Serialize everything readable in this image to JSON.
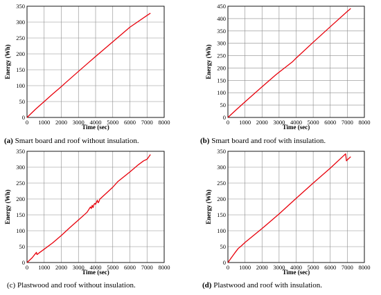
{
  "chart_data": [
    {
      "type": "line",
      "caption_prefix": "(a)",
      "caption_text": " Smart board and roof without insulation.",
      "xlabel": "Time (sec)",
      "ylabel": "Energy (Wh)",
      "xlim": [
        0,
        8000
      ],
      "ylim": [
        0,
        350
      ],
      "xticks": [
        0,
        1000,
        2000,
        3000,
        4000,
        5000,
        6000,
        7000,
        8000
      ],
      "yticks": [
        0,
        50,
        100,
        150,
        200,
        250,
        300,
        350
      ],
      "grid": true,
      "line_color": "#e8000b",
      "series": [
        {
          "x": [
            0,
            250,
            500,
            1000,
            1500,
            2000,
            2200,
            3000,
            4000,
            5000,
            6000,
            7000,
            7200
          ],
          "y": [
            0,
            13,
            26,
            50,
            74,
            97,
            107,
            145,
            192,
            238,
            284,
            321,
            328
          ]
        }
      ]
    },
    {
      "type": "line",
      "caption_prefix": "(b)",
      "caption_text": " Smart board and roof with insulation.",
      "xlabel": "Time (sec)",
      "ylabel": "Energy (Wh)",
      "xlim": [
        0,
        8000
      ],
      "ylim": [
        0,
        450
      ],
      "xticks": [
        0,
        1000,
        2000,
        3000,
        4000,
        5000,
        6000,
        7000,
        8000
      ],
      "yticks": [
        0,
        50,
        100,
        150,
        200,
        250,
        300,
        350,
        400,
        450
      ],
      "grid": true,
      "line_color": "#e8000b",
      "series": [
        {
          "x": [
            0,
            500,
            1000,
            2000,
            2800,
            3000,
            3800,
            4000,
            5000,
            6000,
            7000,
            7200
          ],
          "y": [
            0,
            32,
            63,
            124,
            172,
            183,
            226,
            240,
            304,
            367,
            429,
            441
          ]
        }
      ]
    },
    {
      "type": "line",
      "caption_prefix": "(c)",
      "caption_text": " Plastwood and roof without insulation.",
      "xlabel": "Time (sec)",
      "ylabel": "Energy (Wh)",
      "xlim": [
        0,
        8000
      ],
      "ylim": [
        0,
        350
      ],
      "xticks": [
        0,
        1000,
        2000,
        3000,
        4000,
        5000,
        6000,
        7000,
        8000
      ],
      "yticks": [
        0,
        50,
        100,
        150,
        200,
        250,
        300,
        350
      ],
      "grid": true,
      "line_color": "#e8000b",
      "series": [
        {
          "x": [
            0,
            300,
            550,
            580,
            700,
            1000,
            1500,
            2000,
            2500,
            3000,
            3500,
            3700,
            3750,
            3800,
            3850,
            3900,
            3950,
            4000,
            4100,
            4150,
            4200,
            4250,
            4300,
            5000,
            5300,
            6000,
            6500,
            6800,
            7000,
            7200
          ],
          "y": [
            0,
            15,
            32,
            25,
            30,
            42,
            62,
            85,
            110,
            134,
            158,
            175,
            170,
            180,
            173,
            182,
            186,
            183,
            196,
            188,
            192,
            200,
            202,
            237,
            255,
            285,
            308,
            320,
            325,
            340
          ]
        }
      ]
    },
    {
      "type": "line",
      "caption_prefix": "(d)",
      "caption_text": " Plastwood and roof with insulation.",
      "xlabel": "Time (sec)",
      "ylabel": "Energy (Wh)",
      "xlim": [
        0,
        8000
      ],
      "ylim": [
        0,
        350
      ],
      "xticks": [
        0,
        1000,
        2000,
        3000,
        4000,
        5000,
        6000,
        7000,
        8000
      ],
      "yticks": [
        0,
        50,
        100,
        150,
        200,
        250,
        300,
        350
      ],
      "grid": true,
      "line_color": "#e8000b",
      "series": [
        {
          "x": [
            0,
            200,
            400,
            600,
            800,
            1000,
            2000,
            3000,
            4000,
            5000,
            6000,
            6900,
            6950,
            7000,
            7200
          ],
          "y": [
            0,
            15,
            30,
            44,
            53,
            63,
            107,
            153,
            202,
            250,
            297,
            342,
            320,
            323,
            333
          ]
        }
      ]
    }
  ]
}
